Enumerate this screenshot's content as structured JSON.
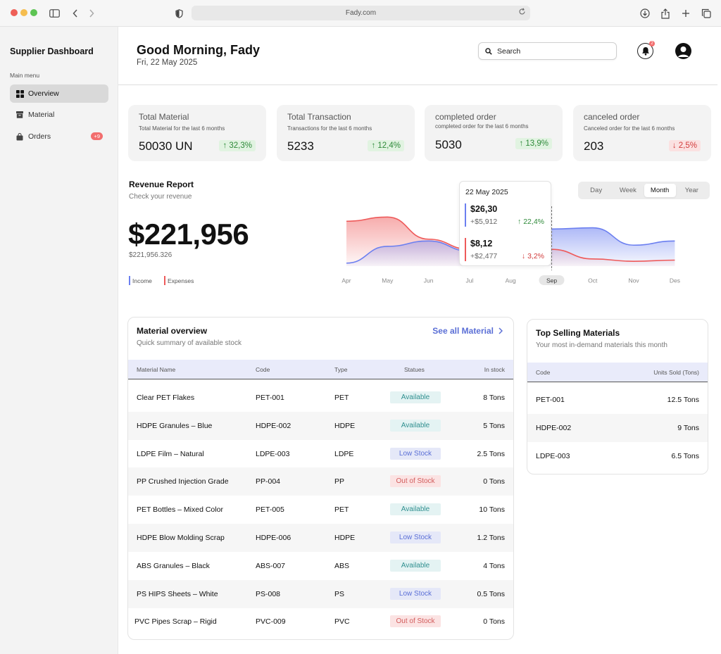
{
  "browser": {
    "url": "Fady.com"
  },
  "sidebar": {
    "title": "Supplier Dashboard",
    "menu_label": "Main menu",
    "items": [
      {
        "label": "Overview",
        "icon": "grid-icon"
      },
      {
        "label": "Material",
        "icon": "box-icon"
      },
      {
        "label": "Orders",
        "icon": "bag-icon",
        "badge": "+9"
      }
    ]
  },
  "header": {
    "greeting": "Good Morning, Fady",
    "date": "Fri, 22 May 2025",
    "search_placeholder": "Search",
    "notification_count": "2"
  },
  "stats": [
    {
      "title": "Total Material",
      "sub": "Total Material for the last 6 months",
      "value": "50030 UN",
      "change": "32,3%",
      "dir": "up"
    },
    {
      "title": "Total Transaction",
      "sub": "Transactions for the last 6 months",
      "value": "5233",
      "change": "12,4%",
      "dir": "up"
    },
    {
      "title": "completed order",
      "sub": "completed order for the last 6 months",
      "value": "5030",
      "change": "13,9%",
      "dir": "up"
    },
    {
      "title": "canceled order",
      "sub": "Canceled order for the last 6 months",
      "value": "203",
      "change": "2,5%",
      "dir": "down"
    }
  ],
  "revenue": {
    "title": "Revenue Report",
    "subtitle": "Check your revenue",
    "total": "$221,956",
    "total_exact": "$221,956.326",
    "legend_income": "Income",
    "legend_expenses": "Expenses",
    "periods": [
      "Day",
      "Week",
      "Month",
      "Year"
    ],
    "active_period": "Month",
    "tooltip": {
      "date": "22 May 2025",
      "income_value": "$26,30",
      "income_delta": "+$5,912",
      "income_pct": "22,4%",
      "expense_value": "$8,12",
      "expense_delta": "+$2,477",
      "expense_pct": "3,2%"
    },
    "colors": {
      "income": "#6b7ff0",
      "expenses": "#ee5a5a"
    }
  },
  "chart_data": {
    "type": "area",
    "categories": [
      "Apr",
      "May",
      "Jun",
      "Jul",
      "Aug",
      "Sep",
      "Oct",
      "Nov",
      "Des"
    ],
    "highlighted": "Sep",
    "series": [
      {
        "name": "Income",
        "values": [
          5,
          33,
          42,
          25,
          30,
          62,
          64,
          35,
          42
        ]
      },
      {
        "name": "Expenses",
        "values": [
          75,
          82,
          45,
          28,
          36,
          28,
          12,
          8,
          10
        ]
      }
    ],
    "ylim": [
      0,
      100
    ]
  },
  "materials": {
    "title": "Material overview",
    "subtitle": "Quick summary of available stock",
    "see_all": "See all Material",
    "columns": [
      "Material Name",
      "Code",
      "Type",
      "Statues",
      "In stock"
    ],
    "rows": [
      {
        "name": "Clear PET Flakes",
        "code": "PET-001",
        "type": "PET",
        "status": "Available",
        "stock": "8 Tons"
      },
      {
        "name": "HDPE Granules – Blue",
        "code": "HDPE-002",
        "type": "HDPE",
        "status": "Available",
        "stock": "5 Tons"
      },
      {
        "name": "LDPE Film – Natural",
        "code": "LDPE-003",
        "type": "LDPE",
        "status": "Low Stock",
        "stock": "2.5 Tons"
      },
      {
        "name": "PP Crushed Injection Grade",
        "code": "PP-004",
        "type": "PP",
        "status": "Out of Stock",
        "stock": "0 Tons"
      },
      {
        "name": "PET Bottles – Mixed Color",
        "code": "PET-005",
        "type": "PET",
        "status": "Available",
        "stock": "10 Tons"
      },
      {
        "name": "HDPE Blow Molding Scrap",
        "code": "HDPE-006",
        "type": "HDPE",
        "status": "Low Stock",
        "stock": "1.2 Tons"
      },
      {
        "name": "ABS Granules – Black",
        "code": "ABS-007",
        "type": "ABS",
        "status": "Available",
        "stock": "4 Tons"
      },
      {
        "name": "PS HIPS Sheets – White",
        "code": "PS-008",
        "type": "PS",
        "status": "Low Stock",
        "stock": "0.5 Tons"
      },
      {
        "name": "PVC Pipes Scrap – Rigid",
        "code": "PVC-009",
        "type": "PVC",
        "status": "Out of Stock",
        "stock": "0 Tons"
      }
    ]
  },
  "top_selling": {
    "title": "Top Selling Materials",
    "subtitle": "Your most in-demand materials this month",
    "columns": [
      "Code",
      "Units Sold (Tons)"
    ],
    "rows": [
      {
        "code": "PET-001",
        "units": "12.5 Tons"
      },
      {
        "code": "HDPE-002",
        "units": "9 Tons"
      },
      {
        "code": "LDPE-003",
        "units": "6.5 Tons"
      }
    ]
  }
}
